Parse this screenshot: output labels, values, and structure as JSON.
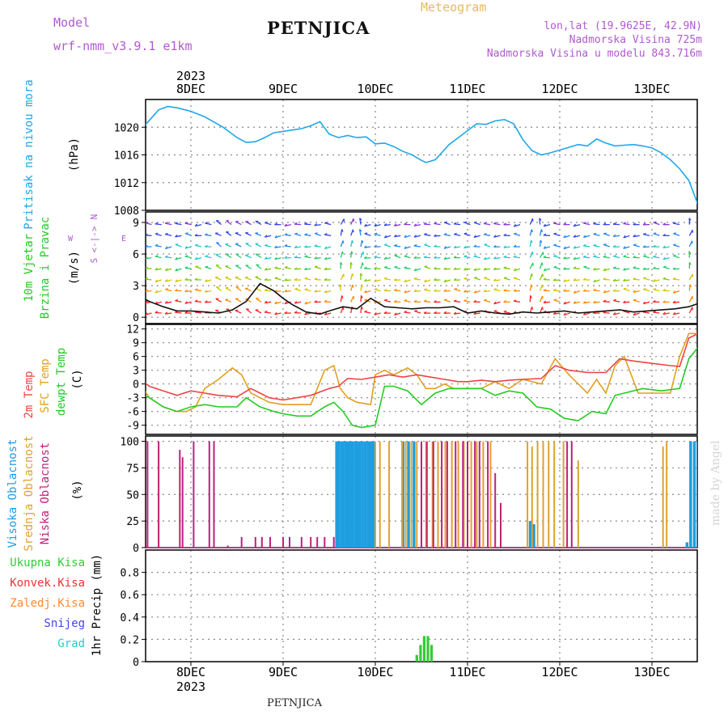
{
  "header": {
    "model_label": "Model",
    "model_name": "wrf-nmm_v3.9.1 e1km",
    "station": "PETNJICA",
    "app_title": "Meteogram",
    "coords": "lon,lat (19.9625E, 42.9N)",
    "altitude": "Nadmorska Visina 725m",
    "model_altitude": "Nadmorska Visina u modelu 843.716m",
    "watermark": "made by Angel",
    "footer_station": "PETNJICA"
  },
  "colors": {
    "pressure": "#1ea8e8",
    "temp2m": "#ee4444",
    "sfc_temp": "#e0a020",
    "dewpoint": "#22cc22",
    "high_cloud": "#1e9ee0",
    "mid_cloud": "#e0a030",
    "low_cloud": "#c0207a",
    "precip_total": "#33cc33",
    "precip_conv": "#ee3333",
    "precip_frozen": "#ff8833",
    "snow": "#4444ee",
    "grad": "#22cccc",
    "purple_text": "#b05ad0",
    "title_orange": "#e8b860"
  },
  "chart_data": [
    {
      "type": "line",
      "title": "",
      "ylabel": [
        "Pritisak na nivou mora",
        "(hPa)"
      ],
      "ylim": [
        1008,
        1024
      ],
      "yticks": [
        1008,
        1012,
        1016,
        1020
      ],
      "xlim": [
        -0.75,
        5.5
      ],
      "x_unit": "days after 8 Dec 2023",
      "day_ticks": [
        "8DEC",
        "9DEC",
        "10DEC",
        "11DEC",
        "12DEC",
        "13DEC"
      ],
      "year": "2023",
      "grid": true,
      "series": [
        {
          "name": "Pritisak na nivou mora",
          "x": [
            -0.75,
            -0.7,
            -0.65,
            -0.55,
            -0.45,
            -0.35,
            -0.25,
            -0.15,
            0,
            0.15,
            0.35,
            0.5,
            0.6,
            0.7,
            0.8,
            0.9,
            1,
            1.1,
            1.2,
            1.3,
            1.4,
            1.5,
            1.6,
            1.7,
            1.8,
            1.9,
            2,
            2.1,
            2.2,
            2.3,
            2.4,
            2.5,
            2.55,
            2.65,
            2.8,
            3,
            3.1,
            3.2,
            3.3,
            3.4,
            3.5,
            3.6,
            3.7,
            3.8,
            3.9,
            4,
            4.1,
            4.2,
            4.3,
            4.4,
            4.5,
            4.6,
            4.7,
            4.8,
            4.9,
            5,
            5.1,
            5.2,
            5.3,
            5.4,
            5.5
          ],
          "y": [
            1018.5,
            1018.8,
            1018.6,
            1019.5,
            1021,
            1022.5,
            1023,
            1022.8,
            1022.3,
            1021.5,
            1020,
            1018.5,
            1017.8,
            1017.9,
            1018.5,
            1019.2,
            1019.4,
            1019.6,
            1019.8,
            1020.2,
            1020.8,
            1019,
            1018.5,
            1018.8,
            1018.5,
            1018.6,
            1017.6,
            1017.7,
            1017.2,
            1016.5,
            1016,
            1015.2,
            1014.9,
            1015.3,
            1017.5,
            1019.5,
            1020.5,
            1020.4,
            1020.9,
            1021.1,
            1020.5,
            1018.2,
            1016.6,
            1016,
            1016.3,
            1016.7,
            1017.1,
            1017.5,
            1017.3,
            1018.3,
            1017.7,
            1017.3,
            1017.4,
            1017.5,
            1017.3,
            1017,
            1016.3,
            1015.3,
            1014,
            1012.3,
            1008.8
          ]
        }
      ]
    },
    {
      "type": "line",
      "title": "",
      "ylabel": [
        "10m Vjetar",
        "Brzina i Pravac",
        "(m/s)"
      ],
      "compass": [
        "N",
        "W",
        "<-|->",
        "E",
        "S"
      ],
      "ylim": [
        -0.6,
        10
      ],
      "yticks": [
        0,
        3,
        6,
        9
      ],
      "grid": true,
      "note": "wind barbs/arrows colored by speed",
      "series": [
        {
          "name": "10m Vjetar",
          "x": [
            -0.75,
            -0.6,
            -0.45,
            -0.3,
            -0.15,
            0,
            0.15,
            0.3,
            0.45,
            0.6,
            0.75,
            0.9,
            1,
            1.1,
            1.25,
            1.4,
            1.5,
            1.65,
            1.8,
            1.95,
            2.1,
            2.25,
            2.4,
            2.55,
            2.7,
            2.85,
            3,
            3.15,
            3.3,
            3.45,
            3.6,
            3.75,
            3.9,
            4.05,
            4.2,
            4.35,
            4.5,
            4.65,
            4.8,
            4.95,
            5.1,
            5.25,
            5.4,
            5.5
          ],
          "y": [
            2.5,
            2.2,
            1.5,
            1,
            0.6,
            0.6,
            0.5,
            0.4,
            0.7,
            1.5,
            3.2,
            2.5,
            1.8,
            1.2,
            0.5,
            0.3,
            0.6,
            1,
            0.8,
            1.8,
            1,
            0.9,
            0.8,
            0.9,
            0.9,
            1,
            0.4,
            0.6,
            0.4,
            0.3,
            0.5,
            0.4,
            0.5,
            0.6,
            0.4,
            0.5,
            0.6,
            0.7,
            0.5,
            0.6,
            0.7,
            0.8,
            1,
            1.3
          ]
        }
      ]
    },
    {
      "type": "line",
      "title": "",
      "ylabel": [
        "2m Temp",
        "SFC Temp",
        "dewpt Temp",
        "(C)"
      ],
      "ylim": [
        -11,
        13
      ],
      "yticks": [
        -9,
        -6,
        -3,
        0,
        3,
        6,
        9,
        12
      ],
      "grid": true,
      "series": [
        {
          "name": "2m Temp",
          "x": [
            -0.75,
            -0.65,
            -0.55,
            -0.45,
            -0.3,
            -0.15,
            0,
            0.15,
            0.3,
            0.5,
            0.65,
            0.75,
            0.85,
            1,
            1.15,
            1.3,
            1.5,
            1.6,
            1.7,
            1.85,
            2,
            2.15,
            2.3,
            2.45,
            2.6,
            2.75,
            2.9,
            3,
            3.15,
            3.3,
            3.45,
            3.6,
            3.8,
            3.95,
            4.1,
            4.3,
            4.5,
            4.55,
            4.65,
            4.8,
            5,
            5.2,
            5.3,
            5.4,
            5.5
          ],
          "y": [
            1,
            2.5,
            1,
            -0.5,
            -1.5,
            -2.5,
            -1.5,
            -2,
            -2.5,
            -2.8,
            -1,
            -2,
            -3,
            -3.5,
            -3,
            -2.5,
            -1,
            -0.5,
            1.2,
            1,
            1.5,
            2,
            1.5,
            2,
            1.5,
            1,
            0.5,
            0.5,
            0.8,
            0.5,
            0.8,
            1,
            1.2,
            4,
            3,
            2.5,
            2.5,
            3.5,
            5.5,
            5,
            4.5,
            4,
            3.8,
            10,
            11
          ]
        },
        {
          "name": "SFC Temp",
          "x": [
            -0.75,
            -0.65,
            -0.55,
            -0.45,
            -0.3,
            -0.15,
            -0.05,
            0.05,
            0.15,
            0.3,
            0.45,
            0.55,
            0.65,
            0.75,
            0.85,
            1,
            1.15,
            1.3,
            1.45,
            1.55,
            1.62,
            1.7,
            1.8,
            1.95,
            2,
            2.1,
            2.2,
            2.35,
            2.45,
            2.55,
            2.65,
            2.75,
            2.85,
            3,
            3.15,
            3.3,
            3.45,
            3.6,
            3.8,
            3.95,
            4.1,
            4.3,
            4.4,
            4.5,
            4.6,
            4.7,
            4.85,
            5.1,
            5.2,
            5.3,
            5.4,
            5.5
          ],
          "y": [
            -1,
            3,
            0,
            -3,
            -5,
            -6,
            -6,
            -5,
            -1,
            1,
            3.5,
            2,
            -2,
            -3,
            -4,
            -4.5,
            -4.5,
            -4.5,
            3,
            4,
            -1,
            -3,
            -4,
            -4.5,
            2,
            3,
            2,
            3.5,
            2,
            -1,
            -1,
            0,
            -1,
            -1,
            -1,
            0.5,
            -1,
            1,
            0,
            5.5,
            2,
            -2,
            1,
            -2,
            4,
            6,
            -2,
            -2,
            -2,
            6,
            11,
            11
          ]
        },
        {
          "name": "dewpt Temp",
          "x": [
            -0.75,
            -0.6,
            -0.45,
            -0.3,
            -0.15,
            0,
            0.15,
            0.3,
            0.5,
            0.6,
            0.75,
            0.9,
            1,
            1.15,
            1.3,
            1.45,
            1.55,
            1.65,
            1.75,
            1.85,
            2,
            2.1,
            2.2,
            2.35,
            2.5,
            2.65,
            2.8,
            3,
            3.15,
            3.3,
            3.45,
            3.6,
            3.75,
            3.9,
            4.05,
            4.2,
            4.35,
            4.5,
            4.6,
            4.7,
            4.9,
            5.1,
            5.3,
            5.4,
            5.5
          ],
          "y": [
            -2,
            -1.5,
            -3,
            -5,
            -6,
            -5,
            -4.5,
            -5,
            -5,
            -3,
            -5,
            -6,
            -6.5,
            -7,
            -7,
            -5,
            -4,
            -6,
            -9,
            -9.5,
            -9,
            -0.5,
            -0.5,
            -1.5,
            -4.5,
            -2,
            -1,
            -1,
            -1,
            -2.5,
            -1.5,
            -2,
            -5,
            -5.5,
            -7.5,
            -8,
            -6,
            -6.5,
            -2.5,
            -2,
            -1,
            -1.5,
            -1,
            5.5,
            8
          ]
        }
      ]
    },
    {
      "type": "bar",
      "title": "",
      "ylabel": [
        "Visoka Oblacnost",
        "Srednja Oblacnost",
        "Niska Oblacnost",
        "(%)"
      ],
      "ylim": [
        0,
        105
      ],
      "yticks": [
        0,
        25,
        50,
        75,
        100
      ],
      "grid": true,
      "series": [
        {
          "name": "Visoka Oblacnost",
          "x": [
            1.58,
            1.6,
            1.63,
            1.65,
            1.68,
            1.7,
            1.73,
            1.75,
            1.78,
            1.8,
            1.83,
            1.86,
            1.89,
            1.92,
            1.95,
            1.98,
            2.3,
            2.36,
            2.42,
            3.68,
            3.72,
            5.38,
            5.42,
            5.46,
            5.5
          ],
          "values": [
            100,
            100,
            100,
            100,
            100,
            100,
            100,
            100,
            100,
            100,
            100,
            100,
            100,
            100,
            100,
            100,
            100,
            100,
            100,
            25,
            22,
            5,
            100,
            100,
            100
          ]
        },
        {
          "name": "Srednja Oblacnost",
          "x": [
            2.0,
            2.05,
            2.15,
            2.29,
            2.33,
            2.39,
            2.45,
            2.55,
            2.62,
            2.68,
            2.76,
            2.83,
            2.9,
            2.96,
            3.04,
            3.1,
            3.17,
            3.25,
            3.65,
            3.7,
            3.76,
            3.82,
            3.88,
            3.94,
            4.04,
            4.2,
            5.12,
            5.16
          ],
          "values": [
            100,
            100,
            100,
            100,
            100,
            100,
            100,
            100,
            100,
            100,
            100,
            100,
            100,
            100,
            100,
            100,
            100,
            100,
            100,
            95,
            100,
            100,
            100,
            100,
            100,
            82,
            95,
            100
          ],
          "note": "vertical line markers"
        },
        {
          "name": "Niska Oblacnost",
          "x": [
            -0.67,
            -0.6,
            -0.47,
            -0.35,
            -0.12,
            -0.09,
            0.03,
            0.2,
            0.25,
            0.4,
            0.55,
            0.7,
            0.77,
            0.86,
            1.0,
            1.07,
            1.2,
            1.3,
            1.37,
            1.45,
            1.55,
            2.5,
            2.56,
            2.63,
            2.72,
            2.78,
            2.87,
            2.95,
            3.0,
            3.08,
            3.13,
            3.22,
            3.3,
            3.36,
            4.08,
            4.13
          ],
          "values": [
            100,
            100,
            100,
            100,
            92,
            85,
            100,
            100,
            100,
            2,
            10,
            10,
            10,
            10,
            10,
            10,
            10,
            10,
            10,
            10,
            10,
            100,
            100,
            100,
            100,
            100,
            100,
            100,
            100,
            100,
            100,
            100,
            70,
            42,
            100,
            100
          ],
          "note": "vertical line markers"
        }
      ]
    },
    {
      "type": "bar",
      "title": "",
      "ylabel": [
        "1hr Precip (mm)"
      ],
      "legend": [
        "Ukupna Kisa",
        "Konvek.Kisa",
        "Zaledj.Kisa",
        "Snijeg",
        "Grad"
      ],
      "ylim": [
        0,
        1
      ],
      "yticks": [
        0,
        0.2,
        0.4,
        0.6,
        0.8
      ],
      "grid": true,
      "x_axis_labels": [
        "8DEC",
        "9DEC",
        "10DEC",
        "11DEC",
        "12DEC",
        "13DEC"
      ],
      "year": "2023",
      "series": [
        {
          "name": "Ukupna Kisa",
          "x": [
            2.45,
            2.49,
            2.53,
            2.57,
            2.61
          ],
          "values": [
            0.06,
            0.15,
            0.23,
            0.23,
            0.15
          ]
        }
      ]
    }
  ]
}
